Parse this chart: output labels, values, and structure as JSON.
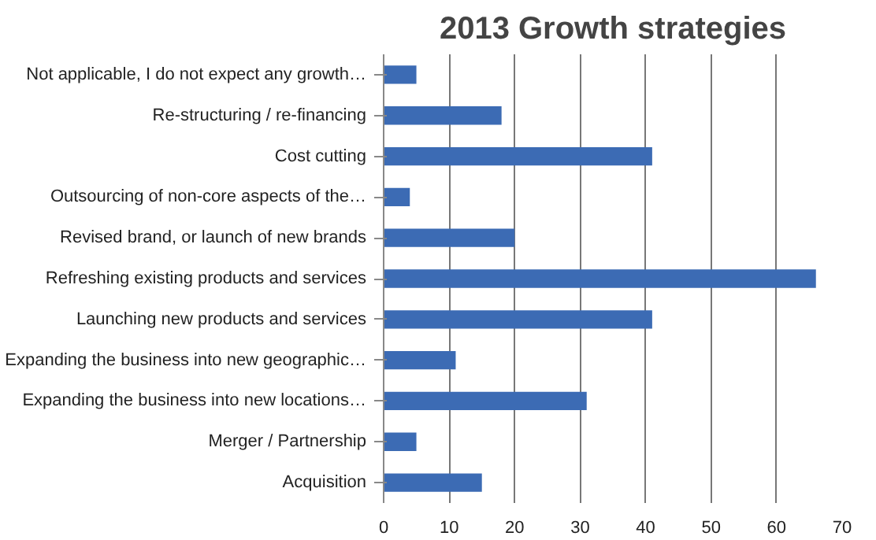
{
  "chart_data": {
    "type": "bar",
    "orientation": "horizontal",
    "title": "2013 Growth strategies",
    "categories": [
      "Not applicable, I do not expect any growth…",
      "Re-structuring / re-financing",
      "Cost cutting",
      "Outsourcing of non-core aspects of the…",
      "Revised brand, or launch of new brands",
      "Refreshing existing products and services",
      "Launching new products and services",
      "Expanding the business into new geographic…",
      "Expanding the business into new locations…",
      "Merger / Partnership",
      "Acquisition"
    ],
    "values": [
      5,
      18,
      41,
      4,
      20,
      66,
      41,
      11,
      31,
      5,
      15
    ],
    "color": "#3c6bb4",
    "xlim": [
      0,
      70
    ],
    "xticks": [
      0,
      10,
      20,
      30,
      40,
      50,
      60,
      70
    ],
    "grid": "x"
  }
}
